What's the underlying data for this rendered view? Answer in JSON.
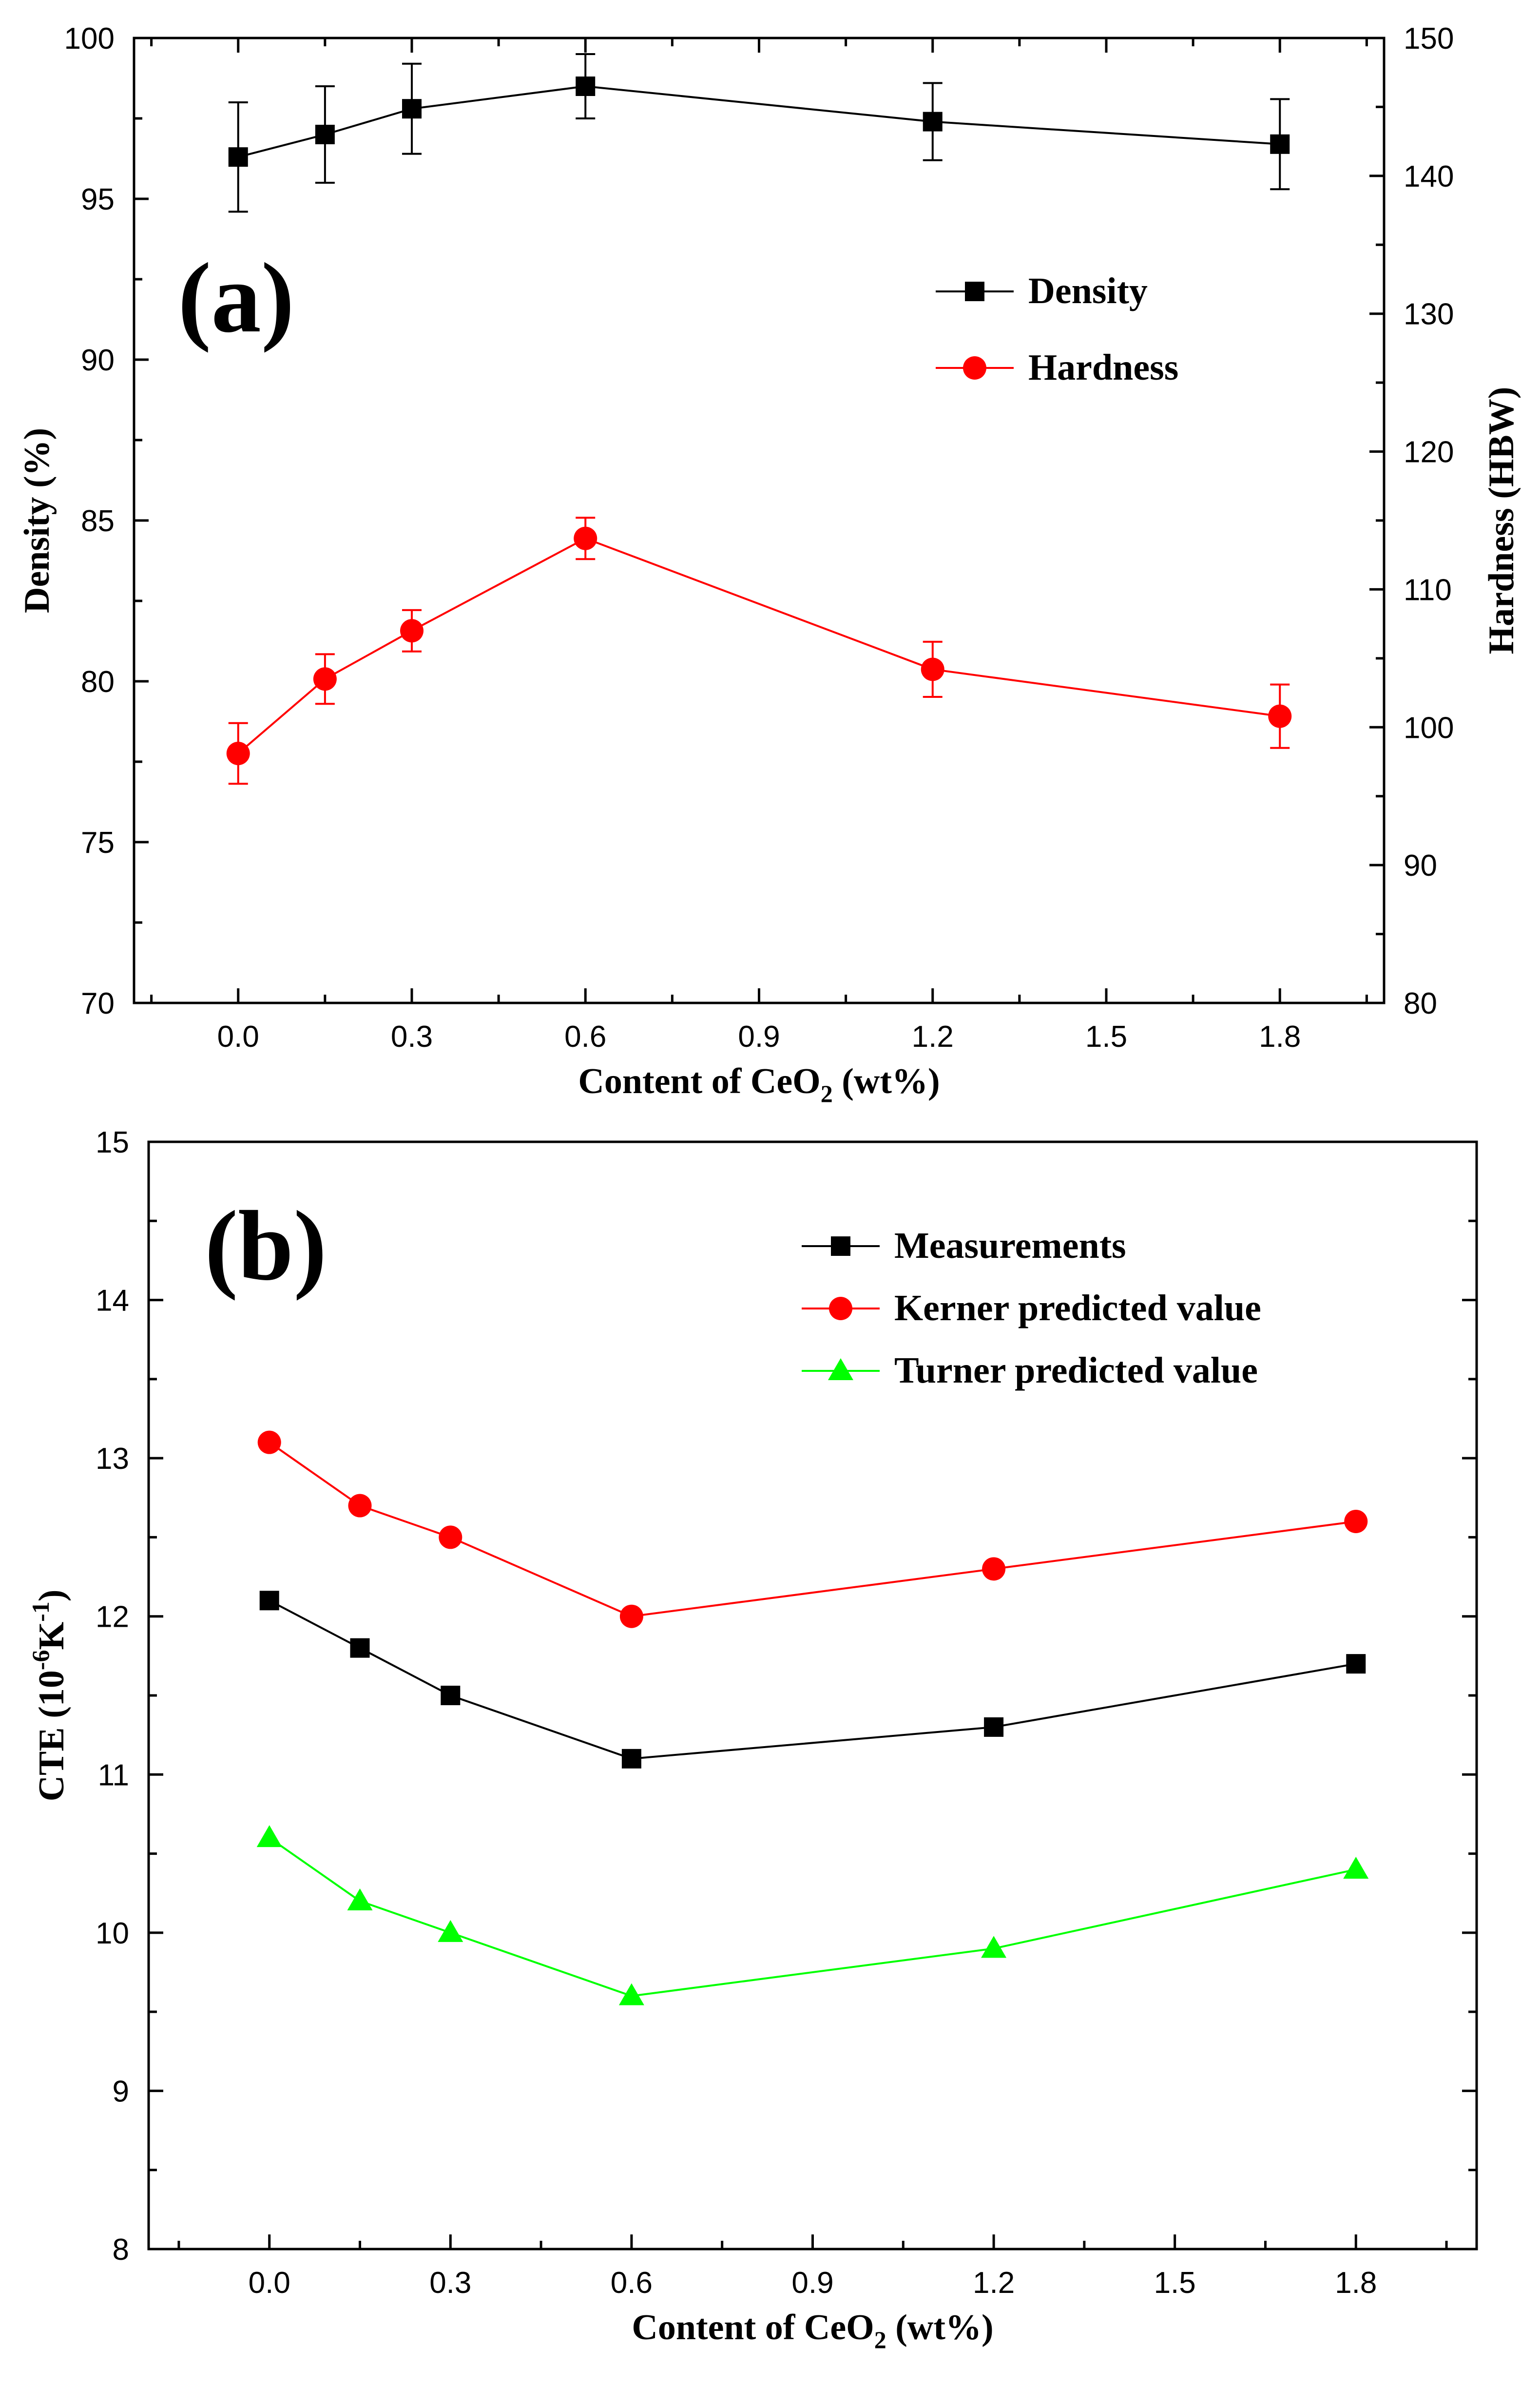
{
  "chart_data": [
    {
      "panel": "(a)",
      "type": "line",
      "x": [
        0.0,
        0.15,
        0.3,
        0.6,
        1.2,
        1.8
      ],
      "xlabel": "Content of CeO2 (wt%)",
      "xlabel_parts": {
        "main": "Content of CeO",
        "sub": "2",
        "tail": " (wt%)"
      },
      "xlim": [
        -0.18,
        1.98
      ],
      "xticks": [
        0.0,
        0.3,
        0.6,
        0.9,
        1.2,
        1.5,
        1.8
      ],
      "xtick_labels": [
        "0.0",
        "0.3",
        "0.6",
        "0.9",
        "1.2",
        "1.5",
        "1.8"
      ],
      "ylabel_left": "Density (%)",
      "ylim_left": [
        70,
        100
      ],
      "yticks_left": [
        70,
        75,
        80,
        85,
        90,
        95,
        100
      ],
      "ytick_labels_left": [
        "70",
        "75",
        "80",
        "85",
        "90",
        "95",
        "100"
      ],
      "ylabel_right": "Hardness (HBW)",
      "ylim_right": [
        80,
        150
      ],
      "yticks_right": [
        80,
        90,
        100,
        110,
        120,
        130,
        140,
        150
      ],
      "ytick_labels_right": [
        "80",
        "90",
        "100",
        "110",
        "120",
        "130",
        "140",
        "150"
      ],
      "grid": false,
      "legend_position": "upper-right",
      "series": [
        {
          "name": "Density",
          "axis": "left",
          "marker": "square",
          "color": "#000000",
          "values": [
            96.3,
            97.0,
            97.8,
            98.5,
            97.4,
            96.7
          ],
          "errors": [
            1.7,
            1.5,
            1.4,
            1.0,
            1.2,
            1.4
          ]
        },
        {
          "name": "Hardness",
          "axis": "right",
          "marker": "circle",
          "color": "#ff0000",
          "values": [
            98.1,
            103.5,
            107.0,
            113.7,
            104.2,
            100.8
          ],
          "errors": [
            2.2,
            1.8,
            1.5,
            1.5,
            2.0,
            2.3
          ]
        }
      ]
    },
    {
      "panel": "(b)",
      "type": "line",
      "x": [
        0.0,
        0.15,
        0.3,
        0.6,
        1.2,
        1.8
      ],
      "xlabel": "Content of CeO2 (wt%)",
      "xlabel_parts": {
        "main": "Content of CeO",
        "sub": "2",
        "tail": " (wt%)"
      },
      "xlim": [
        -0.2,
        2.0
      ],
      "xticks": [
        0.0,
        0.3,
        0.6,
        0.9,
        1.2,
        1.5,
        1.8
      ],
      "xtick_labels": [
        "0.0",
        "0.3",
        "0.6",
        "0.9",
        "1.2",
        "1.5",
        "1.8"
      ],
      "ylabel": "CTE (10-6K-1)",
      "ylabel_parts": {
        "pre": "CTE (10",
        "sup1": "-6",
        "mid": "K",
        "sup2": "-1",
        "post": ")"
      },
      "ylim": [
        8,
        15
      ],
      "yticks": [
        8,
        9,
        10,
        11,
        12,
        13,
        14,
        15
      ],
      "ytick_labels": [
        "8",
        "9",
        "10",
        "11",
        "12",
        "13",
        "14",
        "15"
      ],
      "grid": false,
      "legend_position": "upper-right",
      "series": [
        {
          "name": "Measurements",
          "marker": "square",
          "color": "#000000",
          "values": [
            12.1,
            11.8,
            11.5,
            11.1,
            11.3,
            11.7
          ]
        },
        {
          "name": "Kerner predicted value",
          "marker": "circle",
          "color": "#ff0000",
          "values": [
            13.1,
            12.7,
            12.5,
            12.0,
            12.3,
            12.6
          ]
        },
        {
          "name": "Turner predicted value",
          "marker": "triangle",
          "color": "#00ff00",
          "values": [
            10.6,
            10.2,
            10.0,
            9.6,
            9.9,
            10.4
          ]
        }
      ]
    }
  ]
}
